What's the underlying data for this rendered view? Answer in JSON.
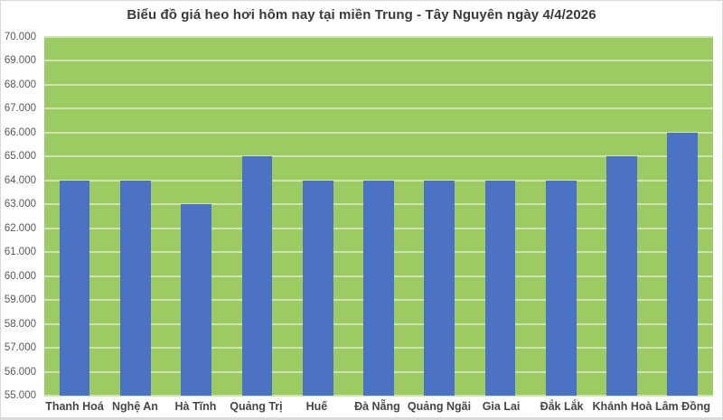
{
  "chart_data": {
    "type": "bar",
    "title": "Biểu đồ giá heo hơi hôm nay tại miền Trung - Tây Nguyên ngày 4/4/2026",
    "categories": [
      "Thanh Hoá",
      "Nghệ An",
      "Hà Tĩnh",
      "Quảng Trị",
      "Huế",
      "Đà Nẵng",
      "Quảng Ngãi",
      "Gia Lai",
      "Đắk Lắk",
      "Khánh Hoà",
      "Lâm Đồng"
    ],
    "values": [
      64000,
      64000,
      63000,
      65000,
      64000,
      64000,
      64000,
      64000,
      64000,
      65000,
      66000
    ],
    "xlabel": "",
    "ylabel": "",
    "ylim": [
      55000,
      70000
    ],
    "ytick_step": 1000,
    "ytick_labels": [
      "55.000",
      "56.000",
      "57.000",
      "58.000",
      "59.000",
      "60.000",
      "61.000",
      "62.000",
      "63.000",
      "64.000",
      "65.000",
      "66.000",
      "67.000",
      "68.000",
      "69.000",
      "70.000"
    ],
    "grid": true,
    "legend": "none"
  },
  "colors": {
    "bar": "#4C72C4",
    "plot_bg": "#9CCB63",
    "gridline": "#CFE3AC",
    "tick_label": "#595959",
    "category_label": "#464646",
    "title": "#3A3A3A",
    "page_bg": "#FFFFFF",
    "page_border": "#D9D9D9"
  }
}
